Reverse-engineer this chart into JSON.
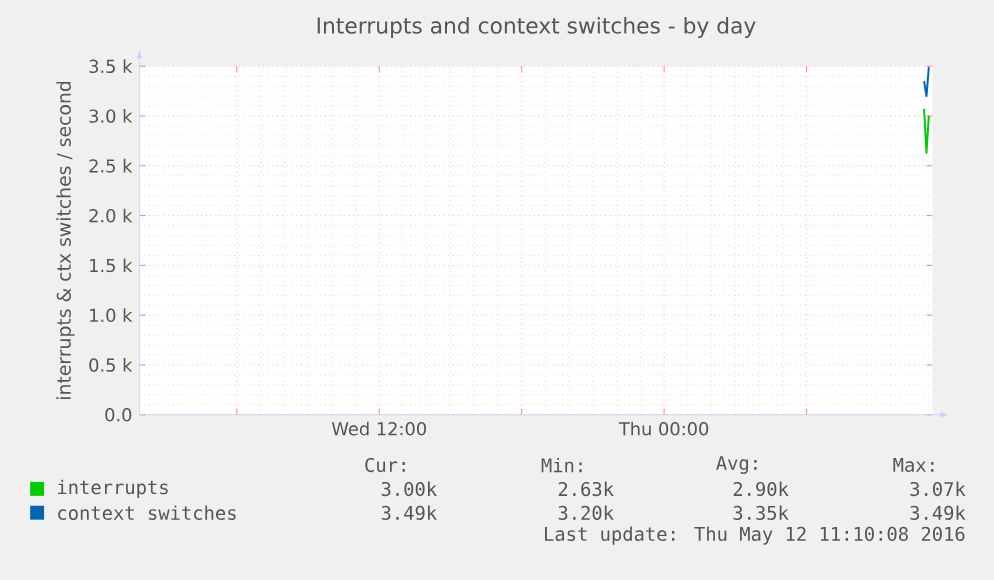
{
  "chart_data": {
    "type": "line",
    "title": "Interrupts and context switches - by day",
    "ylabel": "interrupts & ctx switches / second",
    "x": [
      "2016-05-12T10:57",
      "2016-05-12T11:03",
      "2016-05-12T11:09"
    ],
    "series": [
      {
        "name": "interrupts",
        "color": "#00cc00",
        "values": [
          3070,
          2630,
          3000
        ]
      },
      {
        "name": "context switches",
        "color": "#0066b3",
        "values": [
          3350,
          3200,
          3490
        ]
      }
    ],
    "xlim": [
      "2016-05-11T01:54",
      "2016-05-12T11:18"
    ],
    "xticks": [
      {
        "value": "2016-05-11T06:00",
        "label": null
      },
      {
        "value": "2016-05-11T12:00",
        "label": "Wed 12:00"
      },
      {
        "value": "2016-05-11T18:00",
        "label": null
      },
      {
        "value": "2016-05-12T00:00",
        "label": "Thu 00:00"
      },
      {
        "value": "2016-05-12T06:00",
        "label": null
      }
    ],
    "ylim": [
      0,
      3500
    ],
    "yticks": [
      {
        "value": 0,
        "label": "0.0"
      },
      {
        "value": 500,
        "label": "0.5 k"
      },
      {
        "value": 1000,
        "label": "1.0 k"
      },
      {
        "value": 1500,
        "label": "1.5 k"
      },
      {
        "value": 2000,
        "label": "2.0 k"
      },
      {
        "value": 2500,
        "label": "2.5 k"
      },
      {
        "value": 3000,
        "label": "3.0 k"
      },
      {
        "value": 3500,
        "label": "3.5 k"
      }
    ],
    "grid": true,
    "legend": "bottom",
    "annotations": [
      "Cur:",
      "Min:",
      "Avg:",
      "Max:",
      "3.00k",
      "2.63k",
      "2.90k",
      "3.07k",
      "3.49k",
      "3.20k",
      "3.35k",
      "3.49k",
      "Last update:  Thu May 12 11:10:08 2016"
    ]
  }
}
